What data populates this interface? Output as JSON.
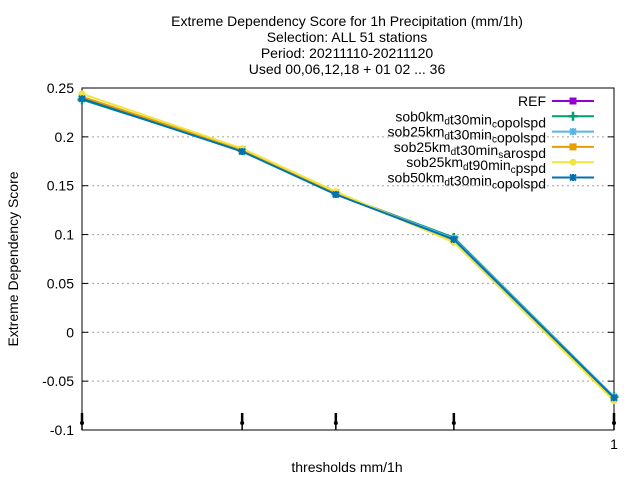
{
  "chart_data": {
    "type": "line",
    "title_lines": [
      "Extreme Dependency Score  for 1h Precipitation (mm/1h)",
      "Selection: ALL      51 stations",
      "Period: 20211110-20211120",
      "Used 00,06,12,18 + 01 02 ... 36"
    ],
    "xlabel": "thresholds mm/1h",
    "ylabel": "Extreme Dependency Score",
    "x_scale": "log",
    "y_ticks": [
      {
        "value": 0.25,
        "label": "0.25"
      },
      {
        "value": 0.2,
        "label": "0.2"
      },
      {
        "value": 0.15,
        "label": "0.15"
      },
      {
        "value": 0.1,
        "label": "0.1"
      },
      {
        "value": 0.05,
        "label": "0.05"
      },
      {
        "value": 0,
        "label": "0"
      },
      {
        "value": -0.05,
        "label": "-0.05"
      },
      {
        "value": -0.1,
        "label": "-0.1"
      }
    ],
    "x_tick_labels": [
      {
        "value": 1,
        "label": "1"
      }
    ],
    "ylim": [
      -0.1,
      0.25
    ],
    "xlim": [
      0.1,
      1.0
    ],
    "grid": "horizontal dotted",
    "legend_position": "top-right",
    "x": [
      0.1,
      0.2,
      0.3,
      0.5,
      1.0
    ],
    "series": [
      {
        "name": "REF",
        "label_html": "REF",
        "color": "#9400d3",
        "marker": "square",
        "values": [
          null,
          null,
          null,
          null,
          null
        ]
      },
      {
        "name": "sob0km_dt30min_copolspd",
        "label_parts": [
          [
            "sob0km",
            ""
          ],
          [
            "d",
            "sub"
          ],
          [
            "t30min",
            ""
          ],
          [
            "c",
            "sub"
          ],
          [
            "opolspd",
            ""
          ]
        ],
        "color": "#009e73",
        "marker": "plus",
        "values": [
          0.238,
          0.186,
          0.142,
          0.097,
          -0.066
        ]
      },
      {
        "name": "sob25km_dt30min_copolspd",
        "label_parts": [
          [
            "sob25km",
            ""
          ],
          [
            "d",
            "sub"
          ],
          [
            "t30min",
            ""
          ],
          [
            "c",
            "sub"
          ],
          [
            "opolspd",
            ""
          ]
        ],
        "color": "#56b4e9",
        "marker": "star",
        "values": [
          0.239,
          0.186,
          0.142,
          0.096,
          -0.066
        ]
      },
      {
        "name": "sob25km_dt30min_sarospd",
        "label_parts": [
          [
            "sob25km",
            ""
          ],
          [
            "d",
            "sub"
          ],
          [
            "t30min",
            ""
          ],
          [
            "s",
            "sub"
          ],
          [
            "arospd",
            ""
          ]
        ],
        "color": "#e69f00",
        "marker": "square",
        "values": [
          0.241,
          0.187,
          0.143,
          0.094,
          -0.068
        ]
      },
      {
        "name": "sob25km_dt90min_cpspd",
        "label_parts": [
          [
            "sob25km",
            ""
          ],
          [
            "d",
            "sub"
          ],
          [
            "t90min",
            ""
          ],
          [
            "c",
            "sub"
          ],
          [
            "pspd",
            ""
          ]
        ],
        "color": "#f0e442",
        "marker": "circle",
        "values": [
          0.244,
          0.188,
          0.144,
          0.092,
          -0.07
        ]
      },
      {
        "name": "sob50km_dt30min_copolspd",
        "label_parts": [
          [
            "sob50km",
            ""
          ],
          [
            "d",
            "sub"
          ],
          [
            "t30min",
            ""
          ],
          [
            "c",
            "sub"
          ],
          [
            "opolspd",
            ""
          ]
        ],
        "color": "#0072b2",
        "marker": "star",
        "values": [
          0.239,
          0.185,
          0.141,
          0.095,
          -0.067
        ]
      }
    ]
  }
}
